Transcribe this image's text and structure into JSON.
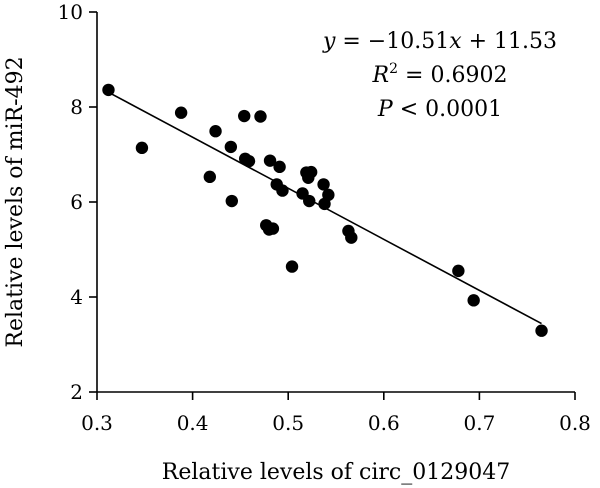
{
  "chart_data": {
    "type": "scatter",
    "xlabel": "Relative levels of circ_0129047",
    "ylabel": "Relative levels of miR-492",
    "xlim": [
      0.3,
      0.8
    ],
    "ylim": [
      2,
      10
    ],
    "xticks": [
      "0.3",
      "0.4",
      "0.5",
      "0.6",
      "0.7",
      "0.8"
    ],
    "yticks": [
      "2",
      "4",
      "6",
      "8",
      "10"
    ],
    "grid": false,
    "points": [
      {
        "x": 0.312,
        "y": 8.36
      },
      {
        "x": 0.347,
        "y": 7.14
      },
      {
        "x": 0.388,
        "y": 7.88
      },
      {
        "x": 0.418,
        "y": 6.53
      },
      {
        "x": 0.424,
        "y": 7.49
      },
      {
        "x": 0.44,
        "y": 7.16
      },
      {
        "x": 0.441,
        "y": 6.02
      },
      {
        "x": 0.454,
        "y": 7.81
      },
      {
        "x": 0.455,
        "y": 6.91
      },
      {
        "x": 0.459,
        "y": 6.86
      },
      {
        "x": 0.471,
        "y": 7.8
      },
      {
        "x": 0.477,
        "y": 5.51
      },
      {
        "x": 0.481,
        "y": 6.87
      },
      {
        "x": 0.48,
        "y": 5.42
      },
      {
        "x": 0.484,
        "y": 5.44
      },
      {
        "x": 0.488,
        "y": 6.37
      },
      {
        "x": 0.491,
        "y": 6.74
      },
      {
        "x": 0.494,
        "y": 6.24
      },
      {
        "x": 0.504,
        "y": 4.64
      },
      {
        "x": 0.515,
        "y": 6.18
      },
      {
        "x": 0.519,
        "y": 6.62
      },
      {
        "x": 0.521,
        "y": 6.51
      },
      {
        "x": 0.522,
        "y": 6.02
      },
      {
        "x": 0.524,
        "y": 6.63
      },
      {
        "x": 0.537,
        "y": 6.37
      },
      {
        "x": 0.538,
        "y": 5.96
      },
      {
        "x": 0.542,
        "y": 6.15
      },
      {
        "x": 0.563,
        "y": 5.39
      },
      {
        "x": 0.566,
        "y": 5.25
      },
      {
        "x": 0.678,
        "y": 4.55
      },
      {
        "x": 0.694,
        "y": 3.93
      },
      {
        "x": 0.765,
        "y": 3.29
      }
    ],
    "fit_line": {
      "x": [
        0.312,
        0.765
      ],
      "y": [
        8.31,
        3.44
      ]
    },
    "annotation": {
      "equation": {
        "y": "y",
        "eq": " = −10.51",
        "x": "x",
        "rest": " + 11.53"
      },
      "r2": {
        "r": "R",
        "sup": "2",
        "rest": " = 0.6902"
      },
      "p": {
        "p": "P",
        "rest": " < 0.0001"
      }
    }
  }
}
